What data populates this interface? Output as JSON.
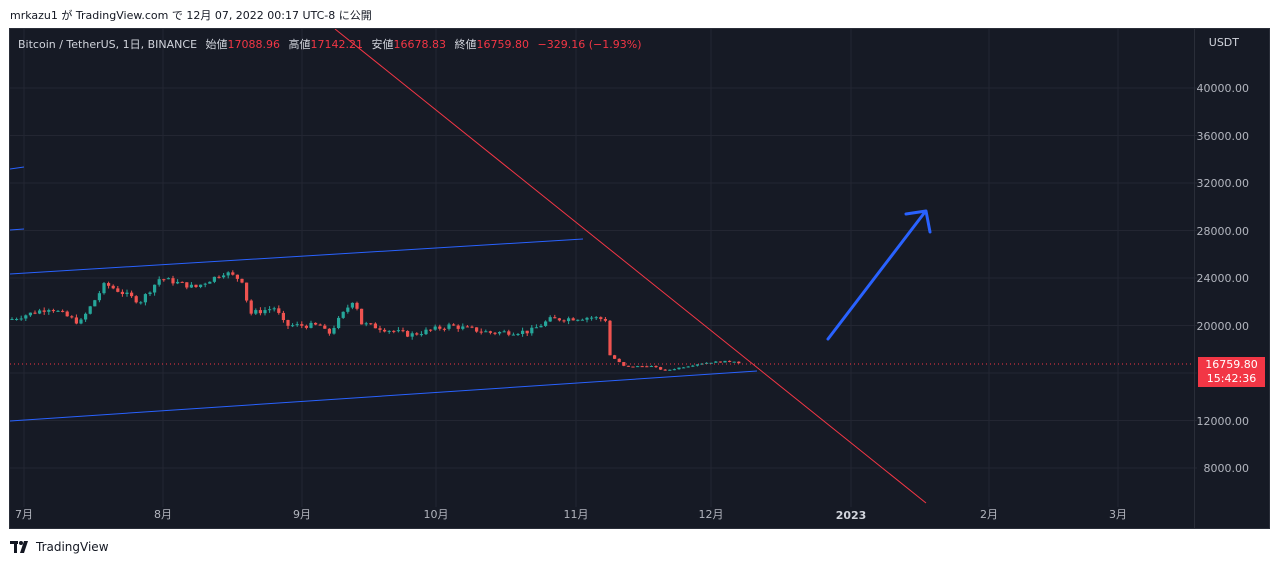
{
  "header": {
    "publish_line": "mrkazu1 が TradingView.com で 12月 07, 2022 00:17 UTC-8 に公開"
  },
  "legend": {
    "symbol": "Bitcoin / TetherUS, 1日, BINANCE",
    "open_label": "始値",
    "open": "17088.96",
    "high_label": "高値",
    "high": "17142.21",
    "low_label": "安値",
    "low": "16678.83",
    "close_label": "終値",
    "close": "16759.80",
    "change": "−329.16 (−1.93%)"
  },
  "price_scale": {
    "currency": "USDT",
    "ticks": [
      "40000.00",
      "36000.00",
      "32000.00",
      "28000.00",
      "24000.00",
      "20000.00",
      "12000.00",
      "8000.00"
    ],
    "last_price": "16759.80",
    "countdown": "15:42:36"
  },
  "time_scale": {
    "labels": [
      {
        "text": "7月",
        "bold": false
      },
      {
        "text": "8月",
        "bold": false
      },
      {
        "text": "9月",
        "bold": false
      },
      {
        "text": "10月",
        "bold": false
      },
      {
        "text": "11月",
        "bold": false
      },
      {
        "text": "12月",
        "bold": false
      },
      {
        "text": "2023",
        "bold": true
      },
      {
        "text": "2月",
        "bold": false
      },
      {
        "text": "3月",
        "bold": false
      }
    ]
  },
  "colors": {
    "background": "#161a25",
    "up": "#26a69a",
    "down": "#ef5350",
    "trendline_red": "#f23645",
    "channel_blue": "#2962ff",
    "arrow_blue": "#2962ff"
  },
  "footer": {
    "brand": "TradingView"
  }
}
